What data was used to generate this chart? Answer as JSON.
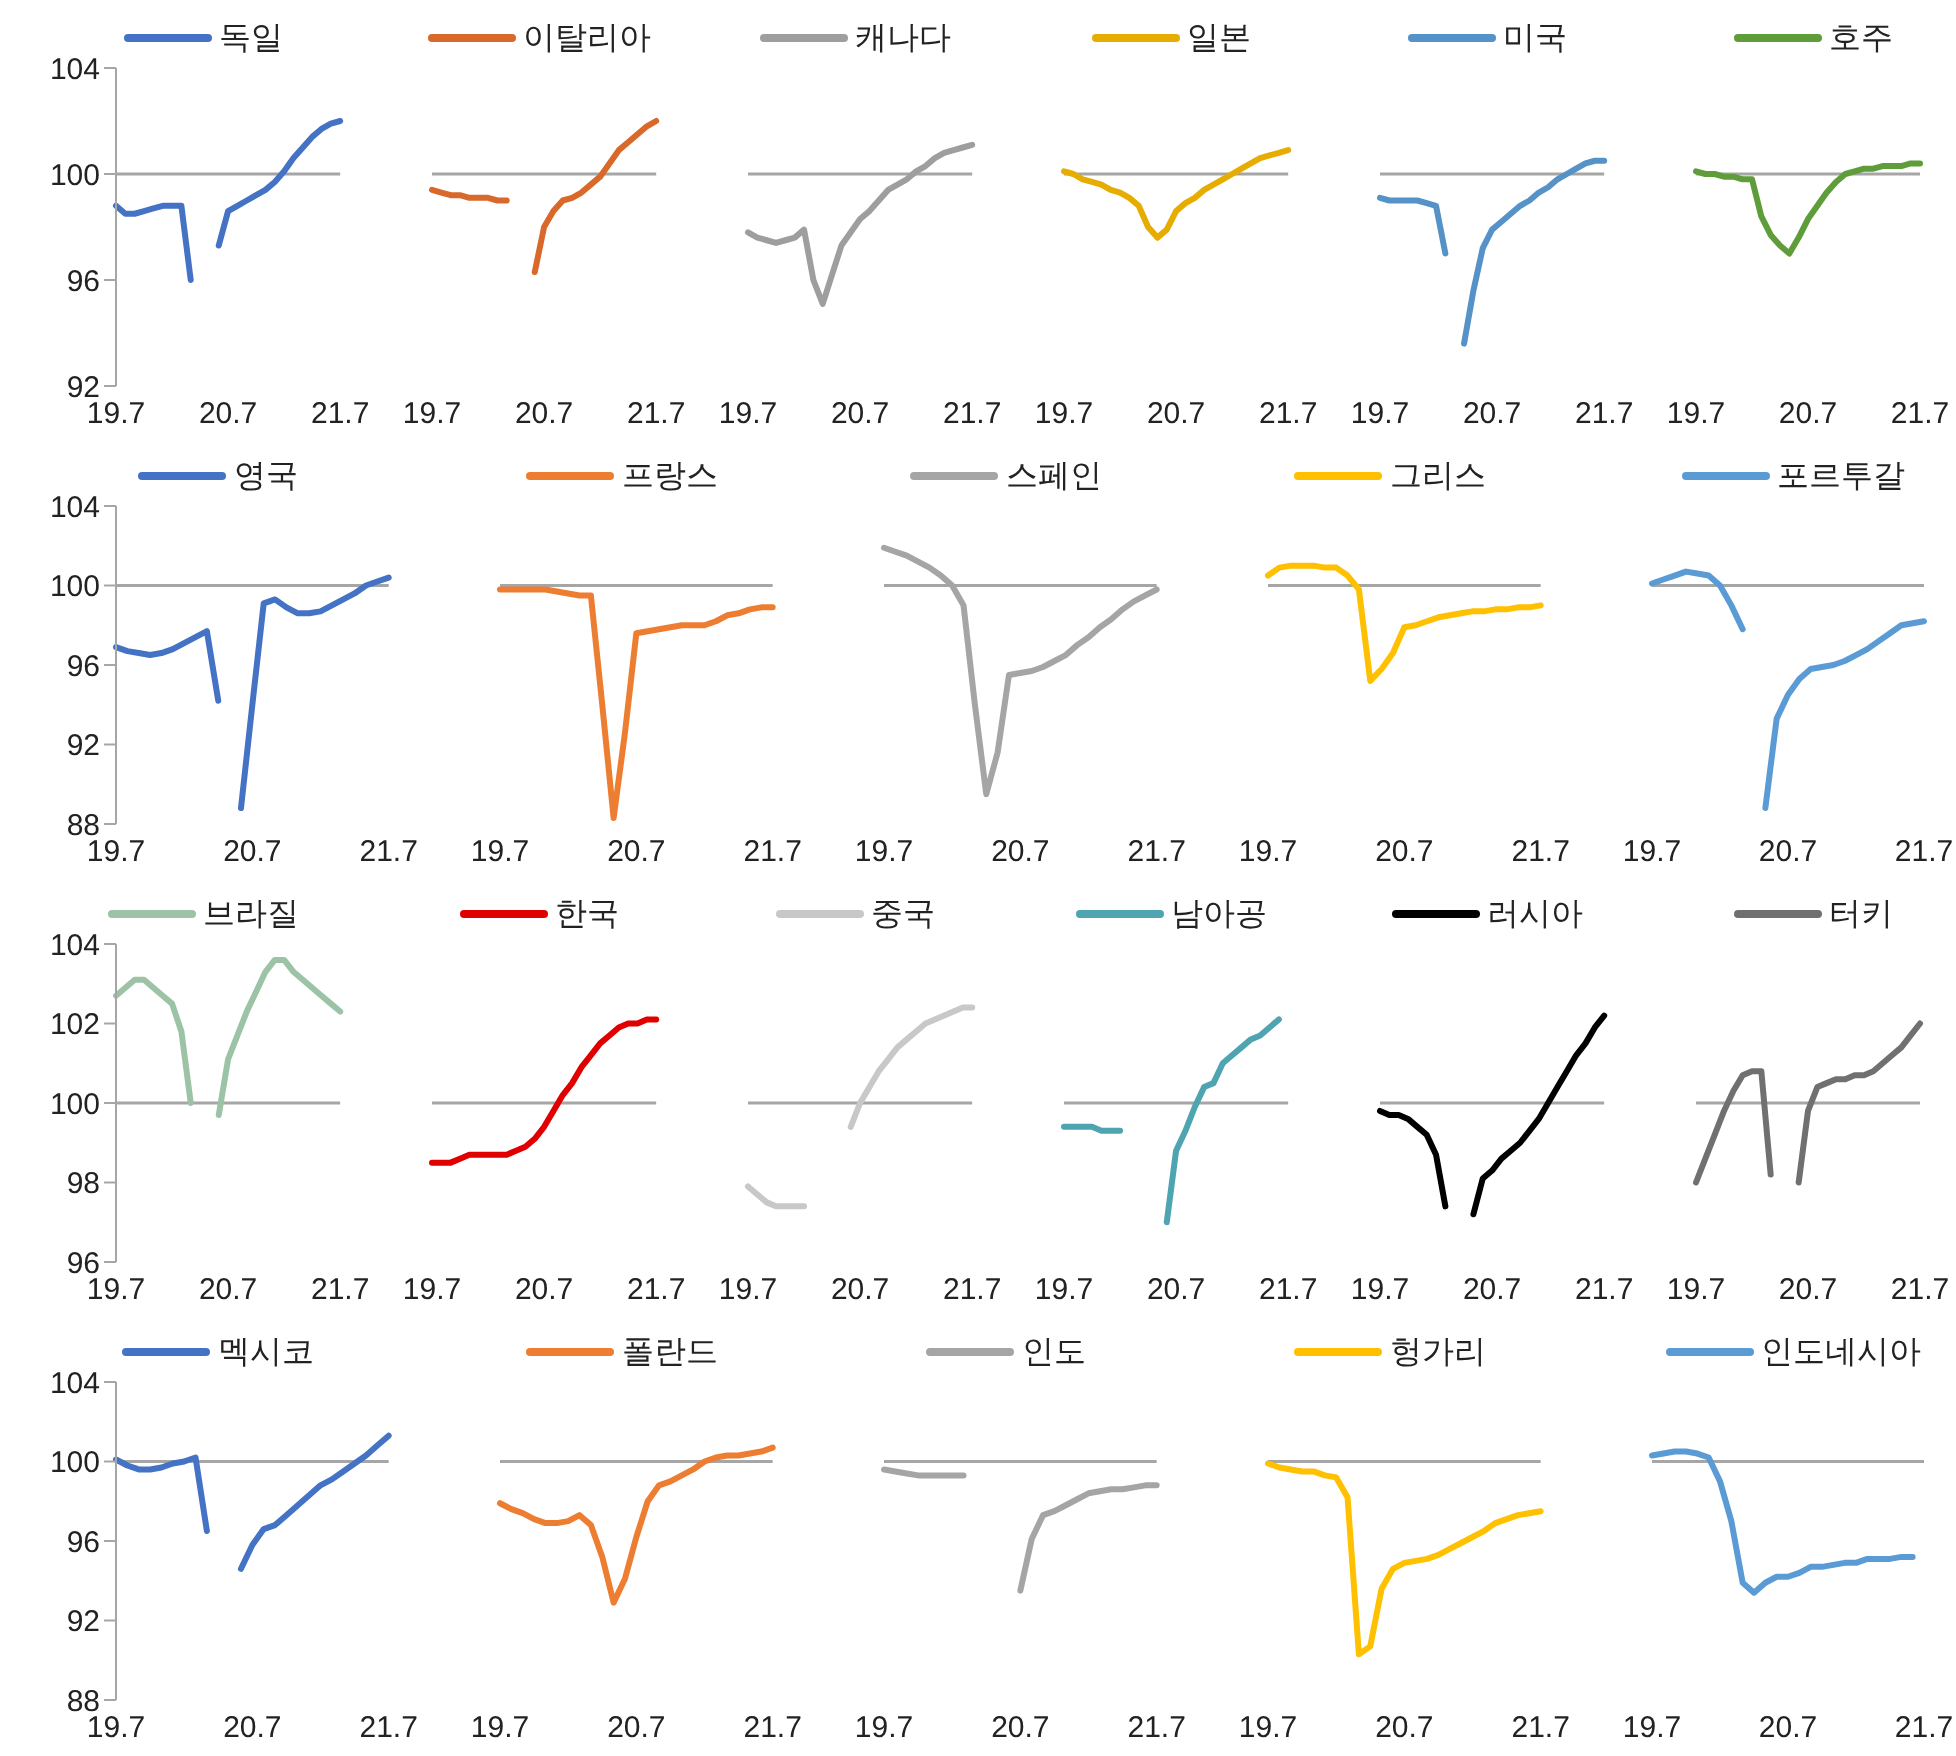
{
  "chart_data": [
    {
      "type": "line",
      "legend": "top",
      "marker": "none",
      "ylim": [
        92,
        104
      ],
      "yticks": [
        92,
        96,
        100,
        104
      ],
      "categories": [
        "19.7",
        null,
        null,
        null,
        null,
        null,
        null,
        null,
        null,
        null,
        null,
        null,
        "20.7",
        null,
        null,
        null,
        null,
        null,
        null,
        null,
        null,
        null,
        null,
        null,
        "21.7"
      ],
      "ref_lines": [
        {
          "axis": "y",
          "value": 100,
          "color": "#a6a6a6"
        }
      ],
      "series": [
        {
          "name": "독일",
          "color": "#4472c4",
          "values": [
            98.8,
            98.5,
            98.5,
            98.6,
            98.7,
            98.8,
            98.8,
            98.8,
            96.0,
            null,
            null,
            97.3,
            98.6,
            98.8,
            99.0,
            99.2,
            99.4,
            99.7,
            100.1,
            100.6,
            101.0,
            101.4,
            101.7,
            101.9,
            102.0
          ]
        }
      ]
    },
    {
      "type": "line",
      "legend": "top",
      "marker": "none",
      "tick_labels": "x",
      "ylim": [
        92,
        104
      ],
      "yticks": [
        92,
        96,
        100,
        104
      ],
      "categories": [
        "19.7",
        null,
        null,
        null,
        null,
        null,
        null,
        null,
        null,
        null,
        null,
        null,
        "20.7",
        null,
        null,
        null,
        null,
        null,
        null,
        null,
        null,
        null,
        null,
        null,
        "21.7"
      ],
      "ref_lines": [
        {
          "axis": "y",
          "value": 100,
          "color": "#a6a6a6"
        }
      ],
      "series": [
        {
          "name": "이탈리아",
          "color": "#d9692b",
          "values": [
            99.4,
            99.3,
            99.2,
            99.2,
            99.1,
            99.1,
            99.1,
            99.0,
            99.0,
            null,
            null,
            96.3,
            98.0,
            98.6,
            99.0,
            99.1,
            99.3,
            99.6,
            99.9,
            100.4,
            100.9,
            101.2,
            101.5,
            101.8,
            102.0
          ]
        }
      ]
    },
    {
      "type": "line",
      "legend": "top",
      "marker": "none",
      "tick_labels": "x",
      "ylim": [
        92,
        104
      ],
      "yticks": [
        92,
        96,
        100,
        104
      ],
      "categories": [
        "19.7",
        null,
        null,
        null,
        null,
        null,
        null,
        null,
        null,
        null,
        null,
        null,
        "20.7",
        null,
        null,
        null,
        null,
        null,
        null,
        null,
        null,
        null,
        null,
        null,
        "21.7"
      ],
      "ref_lines": [
        {
          "axis": "y",
          "value": 100,
          "color": "#a6a6a6"
        }
      ],
      "series": [
        {
          "name": "캐나다",
          "color": "#9e9e9e",
          "values": [
            97.8,
            97.6,
            97.5,
            97.4,
            97.5,
            97.6,
            97.9,
            96.0,
            95.1,
            96.2,
            97.3,
            97.8,
            98.3,
            98.6,
            99.0,
            99.4,
            99.6,
            99.8,
            100.1,
            100.3,
            100.6,
            100.8,
            100.9,
            101.0,
            101.1
          ]
        }
      ]
    },
    {
      "type": "line",
      "legend": "top",
      "marker": "none",
      "tick_labels": "x",
      "ylim": [
        92,
        104
      ],
      "yticks": [
        92,
        96,
        100,
        104
      ],
      "categories": [
        "19.7",
        null,
        null,
        null,
        null,
        null,
        null,
        null,
        null,
        null,
        null,
        null,
        "20.7",
        null,
        null,
        null,
        null,
        null,
        null,
        null,
        null,
        null,
        null,
        null,
        "21.7"
      ],
      "ref_lines": [
        {
          "axis": "y",
          "value": 100,
          "color": "#a6a6a6"
        }
      ],
      "series": [
        {
          "name": "일본",
          "color": "#e6ad00",
          "values": [
            100.1,
            100.0,
            99.8,
            99.7,
            99.6,
            99.4,
            99.3,
            99.1,
            98.8,
            98.0,
            97.6,
            97.9,
            98.6,
            98.9,
            99.1,
            99.4,
            99.6,
            99.8,
            100.0,
            100.2,
            100.4,
            100.6,
            100.7,
            100.8,
            100.9
          ]
        }
      ]
    },
    {
      "type": "line",
      "legend": "top",
      "marker": "none",
      "tick_labels": "x",
      "ylim": [
        92,
        104
      ],
      "yticks": [
        92,
        96,
        100,
        104
      ],
      "categories": [
        "19.7",
        null,
        null,
        null,
        null,
        null,
        null,
        null,
        null,
        null,
        null,
        null,
        "20.7",
        null,
        null,
        null,
        null,
        null,
        null,
        null,
        null,
        null,
        null,
        null,
        "21.7"
      ],
      "ref_lines": [
        {
          "axis": "y",
          "value": 100,
          "color": "#a6a6a6"
        }
      ],
      "series": [
        {
          "name": "미국",
          "color": "#5592c8",
          "values": [
            99.1,
            99.0,
            99.0,
            99.0,
            99.0,
            98.9,
            98.8,
            97.0,
            null,
            93.6,
            95.6,
            97.2,
            97.9,
            98.2,
            98.5,
            98.8,
            99.0,
            99.3,
            99.5,
            99.8,
            100.0,
            100.2,
            100.4,
            100.5,
            100.5
          ]
        }
      ]
    },
    {
      "type": "line",
      "legend": "top",
      "marker": "none",
      "tick_labels": "x",
      "ylim": [
        92,
        104
      ],
      "yticks": [
        92,
        96,
        100,
        104
      ],
      "categories": [
        "19.7",
        null,
        null,
        null,
        null,
        null,
        null,
        null,
        null,
        null,
        null,
        null,
        "20.7",
        null,
        null,
        null,
        null,
        null,
        null,
        null,
        null,
        null,
        null,
        null,
        "21.7"
      ],
      "ref_lines": [
        {
          "axis": "y",
          "value": 100,
          "color": "#a6a6a6"
        }
      ],
      "series": [
        {
          "name": "호주",
          "color": "#5f9c3a",
          "values": [
            100.1,
            100.0,
            100.0,
            99.9,
            99.9,
            99.8,
            99.8,
            98.4,
            97.7,
            97.3,
            97.0,
            97.6,
            98.3,
            98.8,
            99.3,
            99.7,
            100.0,
            100.1,
            100.2,
            100.2,
            100.3,
            100.3,
            100.3,
            100.4,
            100.4
          ]
        }
      ]
    },
    {
      "type": "line",
      "legend": "top",
      "marker": "none",
      "ylim": [
        88,
        104
      ],
      "yticks": [
        88,
        92,
        96,
        100,
        104
      ],
      "categories": [
        "19.7",
        null,
        null,
        null,
        null,
        null,
        null,
        null,
        null,
        null,
        null,
        null,
        "20.7",
        null,
        null,
        null,
        null,
        null,
        null,
        null,
        null,
        null,
        null,
        null,
        "21.7"
      ],
      "ref_lines": [
        {
          "axis": "y",
          "value": 100,
          "color": "#a6a6a6"
        }
      ],
      "series": [
        {
          "name": "영국",
          "color": "#4472c4",
          "values": [
            96.9,
            96.7,
            96.6,
            96.5,
            96.6,
            96.8,
            97.1,
            97.4,
            97.7,
            94.2,
            null,
            88.8,
            94.0,
            99.1,
            99.3,
            98.9,
            98.6,
            98.6,
            98.7,
            99.0,
            99.3,
            99.6,
            100.0,
            100.2,
            100.4
          ]
        }
      ]
    },
    {
      "type": "line",
      "legend": "top",
      "marker": "none",
      "tick_labels": "x",
      "ylim": [
        88,
        104
      ],
      "yticks": [
        88,
        92,
        96,
        100,
        104
      ],
      "categories": [
        "19.7",
        null,
        null,
        null,
        null,
        null,
        null,
        null,
        null,
        null,
        null,
        null,
        "20.7",
        null,
        null,
        null,
        null,
        null,
        null,
        null,
        null,
        null,
        null,
        null,
        "21.7"
      ],
      "ref_lines": [
        {
          "axis": "y",
          "value": 100,
          "color": "#a6a6a6"
        }
      ],
      "series": [
        {
          "name": "프랑스",
          "color": "#ed7d31",
          "values": [
            99.8,
            99.8,
            99.8,
            99.8,
            99.8,
            99.7,
            99.6,
            99.5,
            99.5,
            94.0,
            88.3,
            92.6,
            97.6,
            97.7,
            97.8,
            97.9,
            98.0,
            98.0,
            98.0,
            98.2,
            98.5,
            98.6,
            98.8,
            98.9,
            98.9
          ]
        }
      ]
    },
    {
      "type": "line",
      "legend": "top",
      "marker": "none",
      "tick_labels": "x",
      "ylim": [
        88,
        104
      ],
      "yticks": [
        88,
        92,
        96,
        100,
        104
      ],
      "categories": [
        "19.7",
        null,
        null,
        null,
        null,
        null,
        null,
        null,
        null,
        null,
        null,
        null,
        "20.7",
        null,
        null,
        null,
        null,
        null,
        null,
        null,
        null,
        null,
        null,
        null,
        "21.7"
      ],
      "ref_lines": [
        {
          "axis": "y",
          "value": 100,
          "color": "#a6a6a6"
        }
      ],
      "series": [
        {
          "name": "스페인",
          "color": "#a5a5a5",
          "values": [
            101.9,
            101.7,
            101.5,
            101.2,
            100.9,
            100.5,
            100.0,
            99.0,
            94.0,
            89.5,
            91.6,
            95.5,
            95.6,
            95.7,
            95.9,
            96.2,
            96.5,
            97.0,
            97.4,
            97.9,
            98.3,
            98.8,
            99.2,
            99.5,
            99.8
          ]
        }
      ]
    },
    {
      "type": "line",
      "legend": "top",
      "marker": "none",
      "tick_labels": "x",
      "ylim": [
        88,
        104
      ],
      "yticks": [
        88,
        92,
        96,
        100,
        104
      ],
      "categories": [
        "19.7",
        null,
        null,
        null,
        null,
        null,
        null,
        null,
        null,
        null,
        null,
        null,
        "20.7",
        null,
        null,
        null,
        null,
        null,
        null,
        null,
        null,
        null,
        null,
        null,
        "21.7"
      ],
      "ref_lines": [
        {
          "axis": "y",
          "value": 100,
          "color": "#a6a6a6"
        }
      ],
      "series": [
        {
          "name": "그리스",
          "color": "#ffc000",
          "values": [
            100.5,
            100.9,
            101.0,
            101.0,
            101.0,
            100.9,
            100.9,
            100.5,
            99.8,
            95.2,
            95.8,
            96.6,
            97.9,
            98.0,
            98.2,
            98.4,
            98.5,
            98.6,
            98.7,
            98.7,
            98.8,
            98.8,
            98.9,
            98.9,
            99.0
          ]
        }
      ]
    },
    {
      "type": "line",
      "legend": "top",
      "marker": "none",
      "tick_labels": "x",
      "ylim": [
        88,
        104
      ],
      "yticks": [
        88,
        92,
        96,
        100,
        104
      ],
      "categories": [
        "19.7",
        null,
        null,
        null,
        null,
        null,
        null,
        null,
        null,
        null,
        null,
        null,
        "20.7",
        null,
        null,
        null,
        null,
        null,
        null,
        null,
        null,
        null,
        null,
        null,
        "21.7"
      ],
      "ref_lines": [
        {
          "axis": "y",
          "value": 100,
          "color": "#a6a6a6"
        }
      ],
      "series": [
        {
          "name": "포르투갈",
          "color": "#5b9bd5",
          "values": [
            100.1,
            100.3,
            100.5,
            100.7,
            100.6,
            100.5,
            100.0,
            99.0,
            97.8,
            null,
            88.8,
            93.3,
            94.5,
            95.3,
            95.8,
            95.9,
            96.0,
            96.2,
            96.5,
            96.8,
            97.2,
            97.6,
            98.0,
            98.1,
            98.2
          ]
        }
      ]
    },
    {
      "type": "line",
      "legend": "top",
      "marker": "none",
      "ylim": [
        96,
        104
      ],
      "yticks": [
        96,
        98,
        100,
        102,
        104
      ],
      "categories": [
        "19.7",
        null,
        null,
        null,
        null,
        null,
        null,
        null,
        null,
        null,
        null,
        null,
        "20.7",
        null,
        null,
        null,
        null,
        null,
        null,
        null,
        null,
        null,
        null,
        null,
        "21.7"
      ],
      "ref_lines": [
        {
          "axis": "y",
          "value": 100,
          "color": "#a6a6a6"
        }
      ],
      "series": [
        {
          "name": "브라질",
          "color": "#9dc3a6",
          "values": [
            102.7,
            102.9,
            103.1,
            103.1,
            102.9,
            102.7,
            102.5,
            101.8,
            100.0,
            null,
            null,
            99.7,
            101.1,
            101.7,
            102.3,
            102.8,
            103.3,
            103.6,
            103.6,
            103.3,
            103.1,
            102.9,
            102.7,
            102.5,
            102.3
          ]
        }
      ]
    },
    {
      "type": "line",
      "legend": "top",
      "marker": "none",
      "tick_labels": "x",
      "ylim": [
        96,
        104
      ],
      "yticks": [
        96,
        98,
        100,
        102,
        104
      ],
      "categories": [
        "19.7",
        null,
        null,
        null,
        null,
        null,
        null,
        null,
        null,
        null,
        null,
        null,
        "20.7",
        null,
        null,
        null,
        null,
        null,
        null,
        null,
        null,
        null,
        null,
        null,
        "21.7"
      ],
      "ref_lines": [
        {
          "axis": "y",
          "value": 100,
          "color": "#a6a6a6"
        }
      ],
      "series": [
        {
          "name": "한국",
          "color": "#e00000",
          "values": [
            98.5,
            98.5,
            98.5,
            98.6,
            98.7,
            98.7,
            98.7,
            98.7,
            98.7,
            98.8,
            98.9,
            99.1,
            99.4,
            99.8,
            100.2,
            100.5,
            100.9,
            101.2,
            101.5,
            101.7,
            101.9,
            102.0,
            102.0,
            102.1,
            102.1
          ]
        }
      ]
    },
    {
      "type": "line",
      "legend": "top",
      "marker": "none",
      "tick_labels": "x",
      "ylim": [
        96,
        104
      ],
      "yticks": [
        96,
        98,
        100,
        102,
        104
      ],
      "categories": [
        "19.7",
        null,
        null,
        null,
        null,
        null,
        null,
        null,
        null,
        null,
        null,
        null,
        "20.7",
        null,
        null,
        null,
        null,
        null,
        null,
        null,
        null,
        null,
        null,
        null,
        "21.7"
      ],
      "ref_lines": [
        {
          "axis": "y",
          "value": 100,
          "color": "#a6a6a6"
        }
      ],
      "series": [
        {
          "name": "중국",
          "color": "#c8c8c8",
          "values": [
            97.9,
            97.7,
            97.5,
            97.4,
            97.4,
            97.4,
            97.4,
            null,
            null,
            null,
            null,
            99.4,
            100.0,
            100.4,
            100.8,
            101.1,
            101.4,
            101.6,
            101.8,
            102.0,
            102.1,
            102.2,
            102.3,
            102.4,
            102.4
          ]
        }
      ]
    },
    {
      "type": "line",
      "legend": "top",
      "marker": "none",
      "tick_labels": "x",
      "ylim": [
        96,
        104
      ],
      "yticks": [
        96,
        98,
        100,
        102,
        104
      ],
      "categories": [
        "19.7",
        null,
        null,
        null,
        null,
        null,
        null,
        null,
        null,
        null,
        null,
        null,
        "20.7",
        null,
        null,
        null,
        null,
        null,
        null,
        null,
        null,
        null,
        null,
        null,
        "21.7"
      ],
      "ref_lines": [
        {
          "axis": "y",
          "value": 100,
          "color": "#a6a6a6"
        }
      ],
      "series": [
        {
          "name": "남아공",
          "color": "#4ea4b0",
          "values": [
            99.4,
            99.4,
            99.4,
            99.4,
            99.3,
            99.3,
            99.3,
            null,
            null,
            null,
            null,
            97.0,
            98.8,
            99.3,
            99.9,
            100.4,
            100.5,
            101.0,
            101.2,
            101.4,
            101.6,
            101.7,
            101.9,
            102.1,
            null
          ]
        }
      ]
    },
    {
      "type": "line",
      "legend": "top",
      "marker": "none",
      "tick_labels": "x",
      "ylim": [
        96,
        104
      ],
      "yticks": [
        96,
        98,
        100,
        102,
        104
      ],
      "categories": [
        "19.7",
        null,
        null,
        null,
        null,
        null,
        null,
        null,
        null,
        null,
        null,
        null,
        "20.7",
        null,
        null,
        null,
        null,
        null,
        null,
        null,
        null,
        null,
        null,
        null,
        "21.7"
      ],
      "ref_lines": [
        {
          "axis": "y",
          "value": 100,
          "color": "#a6a6a6"
        }
      ],
      "series": [
        {
          "name": "러시아",
          "color": "#000000",
          "values": [
            99.8,
            99.7,
            99.7,
            99.6,
            99.4,
            99.2,
            98.7,
            97.4,
            null,
            null,
            97.2,
            98.1,
            98.3,
            98.6,
            98.8,
            99.0,
            99.3,
            99.6,
            100.0,
            100.4,
            100.8,
            101.2,
            101.5,
            101.9,
            102.2
          ]
        }
      ]
    },
    {
      "type": "line",
      "legend": "top",
      "marker": "none",
      "tick_labels": "x",
      "ylim": [
        96,
        104
      ],
      "yticks": [
        96,
        98,
        100,
        102,
        104
      ],
      "categories": [
        "19.7",
        null,
        null,
        null,
        null,
        null,
        null,
        null,
        null,
        null,
        null,
        null,
        "20.7",
        null,
        null,
        null,
        null,
        null,
        null,
        null,
        null,
        null,
        null,
        null,
        "21.7"
      ],
      "ref_lines": [
        {
          "axis": "y",
          "value": 100,
          "color": "#a6a6a6"
        }
      ],
      "series": [
        {
          "name": "터키",
          "color": "#707070",
          "values": [
            98.0,
            98.6,
            99.2,
            99.8,
            100.3,
            100.7,
            100.8,
            100.8,
            98.2,
            null,
            null,
            98.0,
            99.8,
            100.4,
            100.5,
            100.6,
            100.6,
            100.7,
            100.7,
            100.8,
            101.0,
            101.2,
            101.4,
            101.7,
            102.0
          ]
        }
      ]
    },
    {
      "type": "line",
      "legend": "top",
      "marker": "none",
      "ylim": [
        88,
        104
      ],
      "yticks": [
        88,
        92,
        96,
        100,
        104
      ],
      "categories": [
        "19.7",
        null,
        null,
        null,
        null,
        null,
        null,
        null,
        null,
        null,
        null,
        null,
        "20.7",
        null,
        null,
        null,
        null,
        null,
        null,
        null,
        null,
        null,
        null,
        null,
        "21.7"
      ],
      "ref_lines": [
        {
          "axis": "y",
          "value": 100,
          "color": "#a6a6a6"
        }
      ],
      "series": [
        {
          "name": "멕시코",
          "color": "#4472c4",
          "values": [
            100.1,
            99.8,
            99.6,
            99.6,
            99.7,
            99.9,
            100.0,
            100.2,
            96.5,
            null,
            null,
            94.6,
            95.8,
            96.6,
            96.8,
            97.3,
            97.8,
            98.3,
            98.8,
            99.1,
            99.5,
            99.9,
            100.3,
            100.8,
            101.3
          ]
        }
      ]
    },
    {
      "type": "line",
      "legend": "top",
      "marker": "none",
      "tick_labels": "x",
      "ylim": [
        88,
        104
      ],
      "yticks": [
        88,
        92,
        96,
        100,
        104
      ],
      "categories": [
        "19.7",
        null,
        null,
        null,
        null,
        null,
        null,
        null,
        null,
        null,
        null,
        null,
        "20.7",
        null,
        null,
        null,
        null,
        null,
        null,
        null,
        null,
        null,
        null,
        null,
        "21.7"
      ],
      "ref_lines": [
        {
          "axis": "y",
          "value": 100,
          "color": "#a6a6a6"
        }
      ],
      "series": [
        {
          "name": "폴란드",
          "color": "#ed7d31",
          "values": [
            97.9,
            97.6,
            97.4,
            97.1,
            96.9,
            96.9,
            97.0,
            97.3,
            96.8,
            95.2,
            92.9,
            94.1,
            96.2,
            98.0,
            98.8,
            99.0,
            99.3,
            99.6,
            100.0,
            100.2,
            100.3,
            100.3,
            100.4,
            100.5,
            100.7
          ]
        }
      ]
    },
    {
      "type": "line",
      "legend": "top",
      "marker": "none",
      "tick_labels": "x",
      "ylim": [
        88,
        104
      ],
      "yticks": [
        88,
        92,
        96,
        100,
        104
      ],
      "categories": [
        "19.7",
        null,
        null,
        null,
        null,
        null,
        null,
        null,
        null,
        null,
        null,
        null,
        "20.7",
        null,
        null,
        null,
        null,
        null,
        null,
        null,
        null,
        null,
        null,
        null,
        "21.7"
      ],
      "ref_lines": [
        {
          "axis": "y",
          "value": 100,
          "color": "#a6a6a6"
        }
      ],
      "series": [
        {
          "name": "인도",
          "color": "#a5a5a5",
          "values": [
            99.6,
            99.5,
            99.4,
            99.3,
            99.3,
            99.3,
            99.3,
            99.3,
            null,
            null,
            null,
            null,
            93.5,
            96.1,
            97.3,
            97.5,
            97.8,
            98.1,
            98.4,
            98.5,
            98.6,
            98.6,
            98.7,
            98.8,
            98.8
          ]
        }
      ]
    },
    {
      "type": "line",
      "legend": "top",
      "marker": "none",
      "tick_labels": "x",
      "ylim": [
        88,
        104
      ],
      "yticks": [
        88,
        92,
        96,
        100,
        104
      ],
      "categories": [
        "19.7",
        null,
        null,
        null,
        null,
        null,
        null,
        null,
        null,
        null,
        null,
        null,
        "20.7",
        null,
        null,
        null,
        null,
        null,
        null,
        null,
        null,
        null,
        null,
        null,
        "21.7"
      ],
      "ref_lines": [
        {
          "axis": "y",
          "value": 100,
          "color": "#a6a6a6"
        }
      ],
      "series": [
        {
          "name": "헝가리",
          "color": "#ffc000",
          "values": [
            99.9,
            99.7,
            99.6,
            99.5,
            99.5,
            99.3,
            99.2,
            98.2,
            90.3,
            90.7,
            93.6,
            94.6,
            94.9,
            95.0,
            95.1,
            95.3,
            95.6,
            95.9,
            96.2,
            96.5,
            96.9,
            97.1,
            97.3,
            97.4,
            97.5
          ]
        }
      ]
    },
    {
      "type": "line",
      "legend": "top",
      "marker": "none",
      "tick_labels": "x",
      "ylim": [
        88,
        104
      ],
      "yticks": [
        88,
        92,
        96,
        100,
        104
      ],
      "categories": [
        "19.7",
        null,
        null,
        null,
        null,
        null,
        null,
        null,
        null,
        null,
        null,
        null,
        "20.7",
        null,
        null,
        null,
        null,
        null,
        null,
        null,
        null,
        null,
        null,
        null,
        "21.7"
      ],
      "ref_lines": [
        {
          "axis": "y",
          "value": 100,
          "color": "#a6a6a6"
        }
      ],
      "series": [
        {
          "name": "인도네시아",
          "color": "#5b9bd5",
          "values": [
            100.3,
            100.4,
            100.5,
            100.5,
            100.4,
            100.2,
            99.0,
            97.0,
            93.9,
            93.4,
            93.9,
            94.2,
            94.2,
            94.4,
            94.7,
            94.7,
            94.8,
            94.9,
            94.9,
            95.1,
            95.1,
            95.1,
            95.2,
            95.2,
            null
          ]
        }
      ]
    }
  ]
}
